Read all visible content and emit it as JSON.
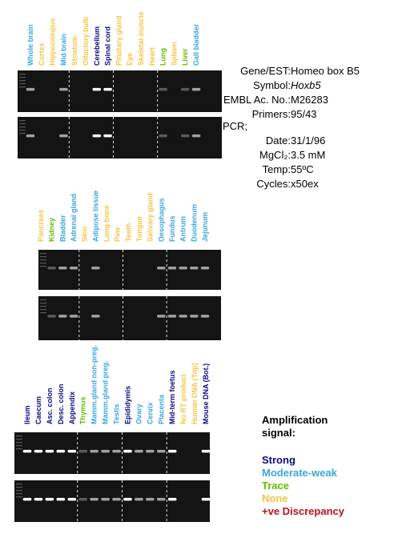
{
  "panels": [
    {
      "lanes": [
        {
          "label": "Whole brain",
          "color": "#3aa6e0"
        },
        {
          "label": "Cortex",
          "color": "#f5c542"
        },
        {
          "label": "Hippocampus",
          "color": "#f5c542"
        },
        {
          "label": "Mid brain",
          "color": "#3aa6e0"
        },
        {
          "label": "Striatum",
          "color": "#f5c542"
        },
        {
          "label": "Olfactory bulb",
          "color": "#f5c542"
        },
        {
          "label": "Cerebellum",
          "color": "#0b0b80"
        },
        {
          "label": "Spinal cord",
          "color": "#0b0b80"
        },
        {
          "label": "Pituitary gland",
          "color": "#f5c542"
        },
        {
          "label": "Eye",
          "color": "#f5c542"
        },
        {
          "label": "Skeletal muscle",
          "color": "#f5c542"
        },
        {
          "label": "Heart",
          "color": "#f5c542"
        },
        {
          "label": "Lung",
          "color": "#66bb00"
        },
        {
          "label": "Spleen",
          "color": "#f5c542"
        },
        {
          "label": "Liver",
          "color": "#66bb00"
        },
        {
          "label": "Gall bladder",
          "color": "#3aa6e0"
        }
      ]
    },
    {
      "lanes": [
        {
          "label": "Pancreas",
          "color": "#f5c542"
        },
        {
          "label": "Kidney",
          "color": "#66bb00"
        },
        {
          "label": "Bladder",
          "color": "#3aa6e0"
        },
        {
          "label": "Adrenal gland",
          "color": "#3aa6e0"
        },
        {
          "label": "Skin",
          "color": "#f5c542"
        },
        {
          "label": "Adipose tissue",
          "color": "#3aa6e0"
        },
        {
          "label": "Long bone",
          "color": "#f5c542"
        },
        {
          "label": "Paw",
          "color": "#f5c542"
        },
        {
          "label": "Teeth",
          "color": "#f5c542"
        },
        {
          "label": "Tongue",
          "color": "#f5c542"
        },
        {
          "label": "Salivary gland",
          "color": "#f5c542"
        },
        {
          "label": "Oesophagus",
          "color": "#3aa6e0"
        },
        {
          "label": "Fundus",
          "color": "#3aa6e0"
        },
        {
          "label": "Antrum",
          "color": "#3aa6e0"
        },
        {
          "label": "Duodenum",
          "color": "#3aa6e0"
        },
        {
          "label": "Jejunum",
          "color": "#3aa6e0"
        }
      ]
    },
    {
      "lanes": [
        {
          "label": "Ileum",
          "color": "#0b0b80"
        },
        {
          "label": "Caecum",
          "color": "#0b0b80"
        },
        {
          "label": "Asc. colon",
          "color": "#0b0b80"
        },
        {
          "label": "Desc. colon",
          "color": "#0b0b80"
        },
        {
          "label": "Appendix",
          "color": "#0b0b80"
        },
        {
          "label": "Thymus",
          "color": "#66bb00"
        },
        {
          "label": "Mamm.gland non-preg.",
          "color": "#3aa6e0"
        },
        {
          "label": "Mamm.gland preg.",
          "color": "#3aa6e0"
        },
        {
          "label": "Testis",
          "color": "#3aa6e0"
        },
        {
          "label": "Epididymis",
          "color": "#0b0b80"
        },
        {
          "label": "Ovary",
          "color": "#3aa6e0"
        },
        {
          "label": "Cervix",
          "color": "#3aa6e0"
        },
        {
          "label": "Placenta",
          "color": "#3aa6e0"
        },
        {
          "label": "Mid-term foetus",
          "color": "#0b0b80"
        },
        {
          "label": "No RT product",
          "color": "#f5c542"
        },
        {
          "label": "Human DNA (Top)",
          "color": "#f5c542"
        },
        {
          "label": "Mouse DNA (Bot.)",
          "color": "#0b0b80"
        }
      ]
    }
  ],
  "info": [
    {
      "key": "Gene/EST:",
      "value": "Homeo box B5"
    },
    {
      "key": "Symbol:",
      "value": "Hoxb5"
    },
    {
      "key": "EMBL Ac. No.:",
      "value": "M26283"
    },
    {
      "key": "Primers:",
      "value": "95/43"
    }
  ],
  "pcr": "PCR;",
  "pcr_info": [
    {
      "key": "Date:",
      "value": "31/1/96"
    },
    {
      "key": "MgCl₂:",
      "value": "3.5 mM"
    },
    {
      "key": "Temp:",
      "value": "55ºC"
    },
    {
      "key": "Cycles:",
      "value": "x50ex"
    }
  ],
  "legend": {
    "title": "Amplification signal:",
    "items": [
      {
        "label": "Strong",
        "color": "#0b0b80"
      },
      {
        "label": "Moderate-weak",
        "color": "#3aa6e0"
      },
      {
        "label": "Trace",
        "color": "#66bb00"
      },
      {
        "label": "None",
        "color": "#f5c542"
      },
      {
        "label": "+ve Discrepancy",
        "color": "#c0101a"
      }
    ]
  }
}
